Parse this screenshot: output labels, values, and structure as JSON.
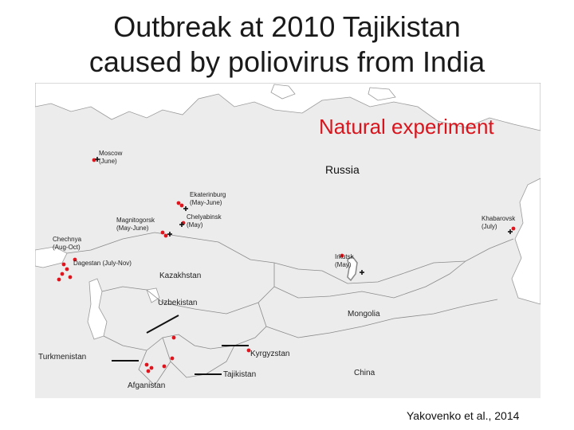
{
  "slide": {
    "title_line1": "Outbreak at 2010 Tajikistan",
    "title_line2": "caused by poliovirus from India",
    "subtitle": "Natural experiment",
    "citation": "Yakovenko et al., 2014",
    "accent_color": "#d9141c",
    "marker_color": "#e0141c"
  },
  "map": {
    "countries": [
      "Russia",
      "Kazakhstan",
      "Uzbekistan",
      "Mongolia",
      "Turkmenistan",
      "Kyrgyzstan",
      "Tajikistan",
      "China",
      "Afganistan"
    ],
    "cities": [
      {
        "name": "Moscow",
        "date": "(June)"
      },
      {
        "name": "Ekaterinburg",
        "date": "(May-June)"
      },
      {
        "name": "Magnitogorsk",
        "date": "(May-June)"
      },
      {
        "name": "Chelyabinsk",
        "date": "(May)"
      },
      {
        "name": "Khabarovsk",
        "date": "(July)"
      },
      {
        "name": "Chechnya",
        "date": "(Aug-Oct)"
      },
      {
        "name": "Dagestan",
        "date": "(July-Nov)"
      },
      {
        "name": "Irkutsk",
        "date": "(May)"
      }
    ]
  }
}
